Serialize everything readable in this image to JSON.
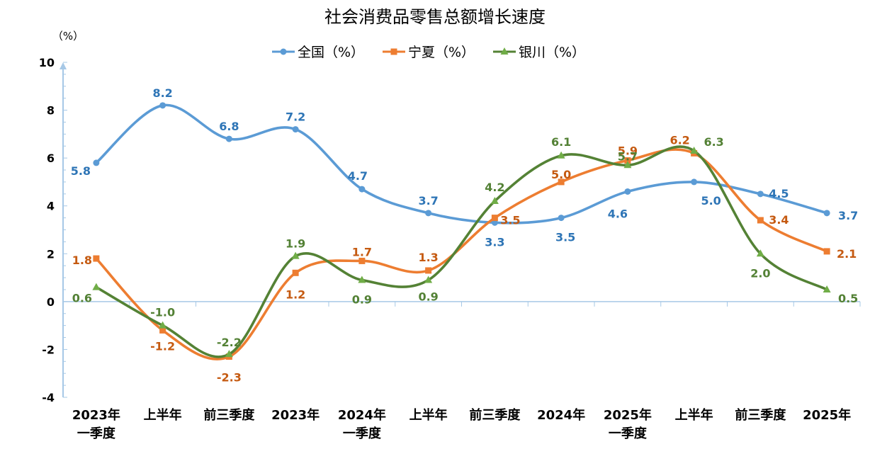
{
  "chart_data": {
    "type": "line",
    "title": "社会消费品零售总额增长速度",
    "unit_label": "（%）",
    "ylim": [
      -4,
      10
    ],
    "yticks": [
      10,
      8,
      6,
      4,
      2,
      0,
      -2,
      -4
    ],
    "categories": [
      [
        "2023年",
        "一季度"
      ],
      [
        "上半年"
      ],
      [
        "前三季度"
      ],
      [
        "2023年"
      ],
      [
        "2024年",
        "一季度"
      ],
      [
        "上半年"
      ],
      [
        "前三季度"
      ],
      [
        "2024年"
      ],
      [
        "2025年",
        "一季度"
      ],
      [
        "上半年"
      ],
      [
        "前三季度"
      ],
      [
        "2025年"
      ]
    ],
    "series": [
      {
        "name": "全国（%）",
        "color": "#5B9BD5",
        "label_color": "#2E75B6",
        "marker": "circle",
        "values": [
          5.8,
          8.2,
          6.8,
          7.2,
          4.7,
          3.7,
          3.3,
          3.5,
          4.6,
          5.0,
          4.5,
          3.7
        ],
        "labels": [
          "5.8",
          "8.2",
          "6.8",
          "7.2",
          "4.7",
          "3.7",
          "3.3",
          "3.5",
          "4.6",
          "5.0",
          "4.5",
          "3.7"
        ]
      },
      {
        "name": "宁夏（%）",
        "color": "#ED7D31",
        "label_color": "#C55A11",
        "marker": "square",
        "values": [
          1.8,
          -1.2,
          -2.3,
          1.2,
          1.7,
          1.3,
          3.5,
          5.0,
          5.9,
          6.2,
          3.4,
          2.1
        ],
        "labels": [
          "1.8",
          "-1.2",
          "-2.3",
          "1.2",
          "1.7",
          "1.3",
          "3.5",
          "5.0",
          "5.9",
          "6.2",
          "3.4",
          "2.1"
        ]
      },
      {
        "name": "银川（%）",
        "color": "#548235",
        "label_color": "#538135",
        "marker": "triangle",
        "marker_color": "#70AD47",
        "values": [
          0.6,
          -1.0,
          -2.2,
          1.9,
          0.9,
          0.9,
          4.2,
          6.1,
          5.7,
          6.3,
          2.0,
          0.5
        ],
        "labels": [
          "0.6",
          "-1.0",
          "-2.2",
          "1.9",
          "0.9",
          "0.9",
          "4.2",
          "6.1",
          "5.7",
          "6.3",
          "2.0",
          "0.5"
        ]
      }
    ]
  }
}
